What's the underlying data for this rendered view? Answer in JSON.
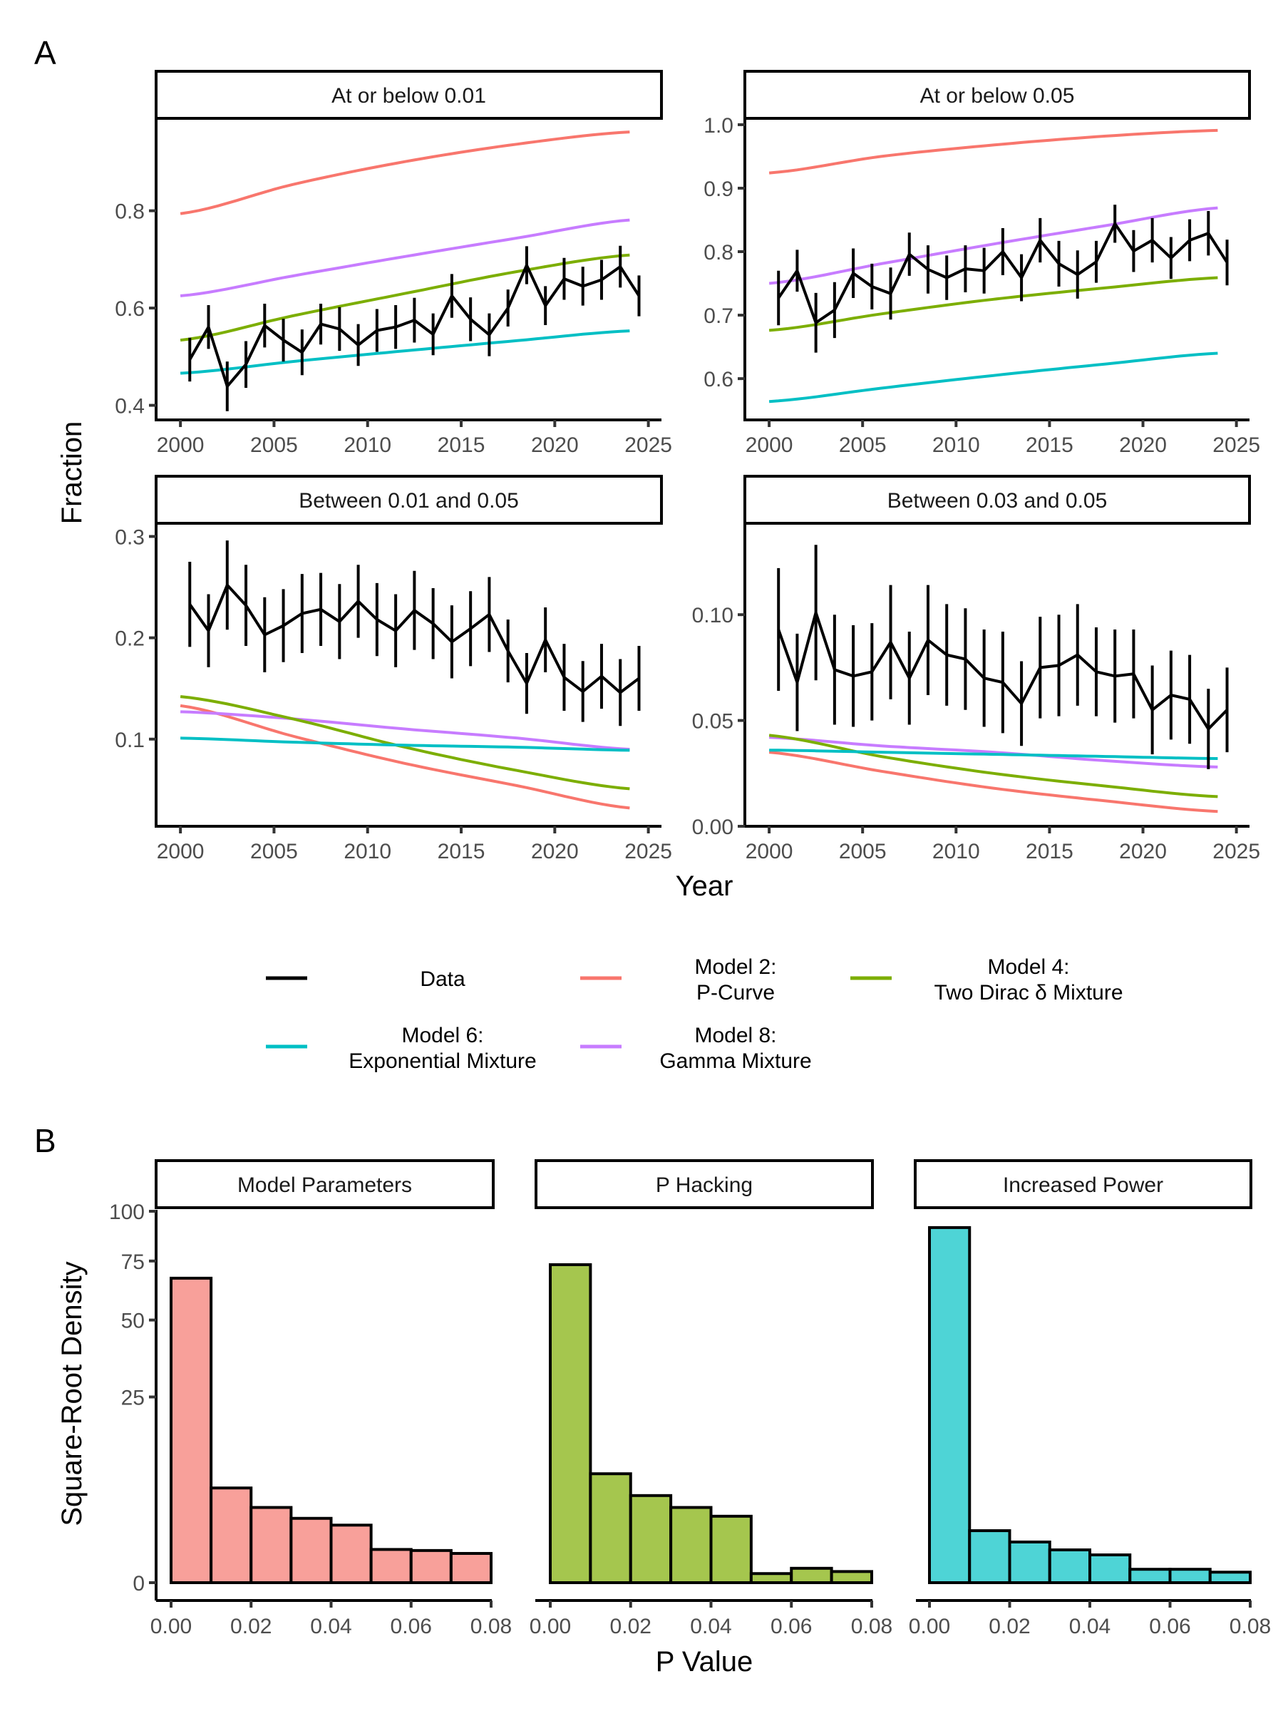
{
  "figure": {
    "panel_letters": [
      "A",
      "B"
    ]
  },
  "legend": {
    "items": [
      {
        "key": "data",
        "line1": "Data",
        "line2": "",
        "color": "#000000"
      },
      {
        "key": "m2",
        "line1": "Model 2:",
        "line2": "P-Curve",
        "color": "#F8766D"
      },
      {
        "key": "m4",
        "line1": "Model 4:",
        "line2": "Two Dirac δ Mixture",
        "color": "#7CAE00"
      },
      {
        "key": "m6",
        "line1": "Model 6:",
        "line2": "Exponential Mixture",
        "color": "#00BFC4"
      },
      {
        "key": "m8",
        "line1": "Model 8:",
        "line2": "Gamma Mixture",
        "color": "#C77CFF"
      }
    ]
  },
  "chart_data": [
    {
      "type": "line",
      "title": "A",
      "xlabel": "Year",
      "ylabel": "Fraction",
      "grid": false,
      "legend_position": "bottom",
      "x_ticks": [
        2000,
        2005,
        2010,
        2015,
        2020,
        2025
      ],
      "facets": [
        {
          "strip": "At or below 0.01",
          "ylim": [
            0.37,
            0.99
          ],
          "y_ticks": [
            "0.4",
            "0.6",
            "0.8"
          ],
          "y_tick_values": [
            0.4,
            0.6,
            0.8
          ],
          "data": {
            "x": [
              2000.5,
              2001.5,
              2002.5,
              2003.5,
              2004.5,
              2005.5,
              2006.5,
              2007.5,
              2008.5,
              2009.5,
              2010.5,
              2011.5,
              2012.5,
              2013.5,
              2014.5,
              2015.5,
              2016.5,
              2017.5,
              2018.5,
              2019.5,
              2020.5,
              2021.5,
              2022.5,
              2023.5,
              2024.5
            ],
            "y": [
              0.494,
              0.561,
              0.439,
              0.484,
              0.564,
              0.534,
              0.509,
              0.567,
              0.557,
              0.524,
              0.554,
              0.561,
              0.575,
              0.546,
              0.625,
              0.577,
              0.545,
              0.6,
              0.688,
              0.605,
              0.66,
              0.645,
              0.658,
              0.685,
              0.625
            ],
            "err": [
              0.045,
              0.045,
              0.051,
              0.048,
              0.045,
              0.044,
              0.047,
              0.042,
              0.045,
              0.043,
              0.044,
              0.045,
              0.046,
              0.043,
              0.045,
              0.045,
              0.044,
              0.038,
              0.039,
              0.04,
              0.043,
              0.04,
              0.041,
              0.043,
              0.042
            ]
          },
          "models": {
            "x": [
              2000,
              2006,
              2012,
              2018,
              2024
            ],
            "m2": [
              0.794,
              0.854,
              0.901,
              0.937,
              0.962
            ],
            "m8": [
              0.625,
              0.666,
              0.706,
              0.744,
              0.781
            ],
            "m4": [
              0.534,
              0.584,
              0.63,
              0.675,
              0.709
            ],
            "m6": [
              0.466,
              0.49,
              0.512,
              0.533,
              0.553
            ]
          }
        },
        {
          "strip": "At or below 0.05",
          "ylim": [
            0.535,
            1.01
          ],
          "y_ticks": [
            "0.6",
            "0.7",
            "0.8",
            "0.9",
            "1.0"
          ],
          "y_tick_values": [
            0.6,
            0.7,
            0.8,
            0.9,
            1.0
          ],
          "data": {
            "x": [
              2000.5,
              2001.5,
              2002.5,
              2003.5,
              2004.5,
              2005.5,
              2006.5,
              2007.5,
              2008.5,
              2009.5,
              2010.5,
              2011.5,
              2012.5,
              2013.5,
              2014.5,
              2015.5,
              2016.5,
              2017.5,
              2018.5,
              2019.5,
              2020.5,
              2021.5,
              2022.5,
              2023.5,
              2024.5
            ],
            "y": [
              0.727,
              0.77,
              0.688,
              0.708,
              0.766,
              0.745,
              0.734,
              0.796,
              0.772,
              0.759,
              0.773,
              0.77,
              0.8,
              0.759,
              0.818,
              0.781,
              0.764,
              0.784,
              0.844,
              0.801,
              0.818,
              0.79,
              0.818,
              0.829,
              0.783
            ],
            "err": [
              0.043,
              0.033,
              0.047,
              0.044,
              0.039,
              0.036,
              0.041,
              0.034,
              0.038,
              0.035,
              0.037,
              0.036,
              0.037,
              0.037,
              0.035,
              0.036,
              0.038,
              0.033,
              0.03,
              0.033,
              0.035,
              0.033,
              0.033,
              0.035,
              0.036
            ]
          },
          "models": {
            "x": [
              2000,
              2006,
              2012,
              2018,
              2024
            ],
            "m2": [
              0.924,
              0.95,
              0.968,
              0.982,
              0.991
            ],
            "m8": [
              0.75,
              0.781,
              0.812,
              0.841,
              0.869
            ],
            "m4": [
              0.676,
              0.702,
              0.725,
              0.743,
              0.759
            ],
            "m6": [
              0.564,
              0.585,
              0.605,
              0.623,
              0.64
            ]
          }
        },
        {
          "strip": "Between 0.01 and 0.05",
          "ylim": [
            0.014,
            0.313
          ],
          "y_ticks": [
            "0.1",
            "0.2",
            "0.3"
          ],
          "y_tick_values": [
            0.1,
            0.2,
            0.3
          ],
          "data": {
            "x": [
              2000.5,
              2001.5,
              2002.5,
              2003.5,
              2004.5,
              2005.5,
              2006.5,
              2007.5,
              2008.5,
              2009.5,
              2010.5,
              2011.5,
              2012.5,
              2013.5,
              2014.5,
              2015.5,
              2016.5,
              2017.5,
              2018.5,
              2019.5,
              2020.5,
              2021.5,
              2022.5,
              2023.5,
              2024.5
            ],
            "y": [
              0.233,
              0.207,
              0.252,
              0.232,
              0.203,
              0.212,
              0.224,
              0.228,
              0.216,
              0.236,
              0.218,
              0.207,
              0.227,
              0.214,
              0.196,
              0.209,
              0.223,
              0.187,
              0.155,
              0.198,
              0.161,
              0.147,
              0.162,
              0.146,
              0.16
            ],
            "err": [
              0.042,
              0.036,
              0.044,
              0.04,
              0.037,
              0.036,
              0.039,
              0.036,
              0.037,
              0.036,
              0.036,
              0.036,
              0.039,
              0.035,
              0.036,
              0.037,
              0.037,
              0.031,
              0.03,
              0.032,
              0.033,
              0.03,
              0.032,
              0.033,
              0.032
            ]
          },
          "models": {
            "x": [
              2000,
              2006,
              2012,
              2018,
              2024
            ],
            "m2": [
              0.133,
              0.103,
              0.076,
              0.054,
              0.032
            ],
            "m8": [
              0.127,
              0.12,
              0.11,
              0.101,
              0.09
            ],
            "m4": [
              0.142,
              0.12,
              0.092,
              0.069,
              0.051
            ],
            "m6": [
              0.101,
              0.097,
              0.094,
              0.092,
              0.089
            ]
          }
        },
        {
          "strip": "Between 0.03 and 0.05",
          "ylim": [
            0.0,
            0.1432
          ],
          "y_ticks": [
            "0.00",
            "0.05",
            "0.10"
          ],
          "y_tick_values": [
            0.0,
            0.05,
            0.1
          ],
          "data": {
            "x": [
              2000.5,
              2001.5,
              2002.5,
              2003.5,
              2004.5,
              2005.5,
              2006.5,
              2007.5,
              2008.5,
              2009.5,
              2010.5,
              2011.5,
              2012.5,
              2013.5,
              2014.5,
              2015.5,
              2016.5,
              2017.5,
              2018.5,
              2019.5,
              2020.5,
              2021.5,
              2022.5,
              2023.5,
              2024.5
            ],
            "y": [
              0.093,
              0.068,
              0.101,
              0.074,
              0.071,
              0.073,
              0.087,
              0.07,
              0.088,
              0.081,
              0.079,
              0.07,
              0.068,
              0.058,
              0.075,
              0.076,
              0.081,
              0.073,
              0.071,
              0.072,
              0.055,
              0.062,
              0.06,
              0.046,
              0.055
            ],
            "err": [
              0.029,
              0.023,
              0.032,
              0.026,
              0.024,
              0.023,
              0.027,
              0.022,
              0.026,
              0.024,
              0.024,
              0.023,
              0.024,
              0.02,
              0.024,
              0.024,
              0.024,
              0.021,
              0.022,
              0.021,
              0.021,
              0.021,
              0.021,
              0.019,
              0.02
            ]
          },
          "models": {
            "x": [
              2000,
              2006,
              2012,
              2018,
              2024
            ],
            "m2": [
              0.035,
              0.026,
              0.018,
              0.012,
              0.007
            ],
            "m8": [
              0.042,
              0.038,
              0.035,
              0.031,
              0.028
            ],
            "m4": [
              0.043,
              0.033,
              0.025,
              0.019,
              0.014
            ],
            "m6": [
              0.036,
              0.035,
              0.034,
              0.033,
              0.032
            ]
          }
        }
      ]
    },
    {
      "type": "bar",
      "title": "B",
      "xlabel": "P Value",
      "ylabel": "Square-Root Density",
      "y_scale": "sqrt",
      "ylim": [
        0,
        100
      ],
      "y_ticks": [
        "0",
        "25",
        "50",
        "75",
        "100"
      ],
      "y_tick_values": [
        0,
        25,
        50,
        75,
        100
      ],
      "x_ticks": [
        "0.00",
        "0.02",
        "0.04",
        "0.06",
        "0.08"
      ],
      "x_tick_values": [
        0.0,
        0.02,
        0.04,
        0.06,
        0.08
      ],
      "bin_edges": [
        0.0,
        0.01,
        0.02,
        0.03,
        0.04,
        0.05,
        0.06,
        0.07,
        0.08
      ],
      "grid": false,
      "facets": [
        {
          "strip": "Model Parameters",
          "fill": "#F8A09A",
          "values": [
            67.2,
            6.5,
            4.1,
            3.0,
            2.4,
            0.8,
            0.75,
            0.62
          ]
        },
        {
          "strip": "P Hacking",
          "fill": "#A5C64E",
          "values": [
            73.3,
            8.6,
            5.5,
            4.1,
            3.2,
            0.06,
            0.15,
            0.09
          ]
        },
        {
          "strip": "Increased Power",
          "fill": "#4ED4D6",
          "values": [
            91.4,
            1.96,
            1.2,
            0.78,
            0.56,
            0.13,
            0.13,
            0.08
          ]
        }
      ]
    }
  ]
}
